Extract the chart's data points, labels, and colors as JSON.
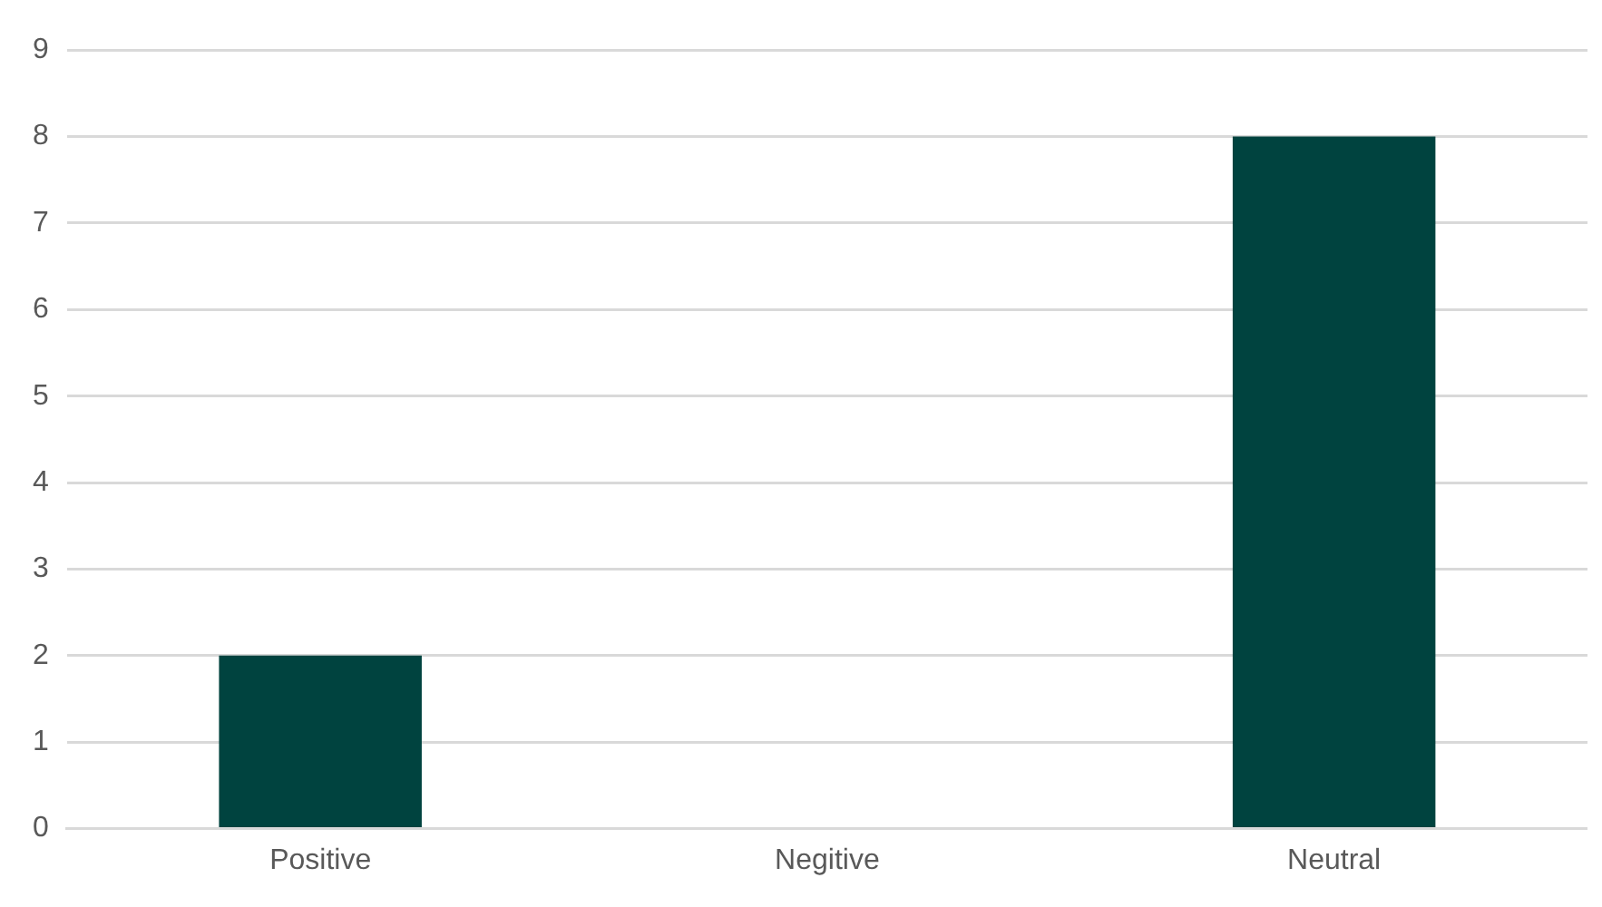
{
  "chart_data": {
    "type": "bar",
    "categories": [
      "Positive",
      "Negitive",
      "Neutral"
    ],
    "values": [
      2,
      0,
      8
    ],
    "color": "#00433f",
    "ylim": [
      0,
      9
    ],
    "yticks": [
      0,
      1,
      2,
      3,
      4,
      5,
      6,
      7,
      8,
      9
    ],
    "grid": "y",
    "legend": false
  }
}
